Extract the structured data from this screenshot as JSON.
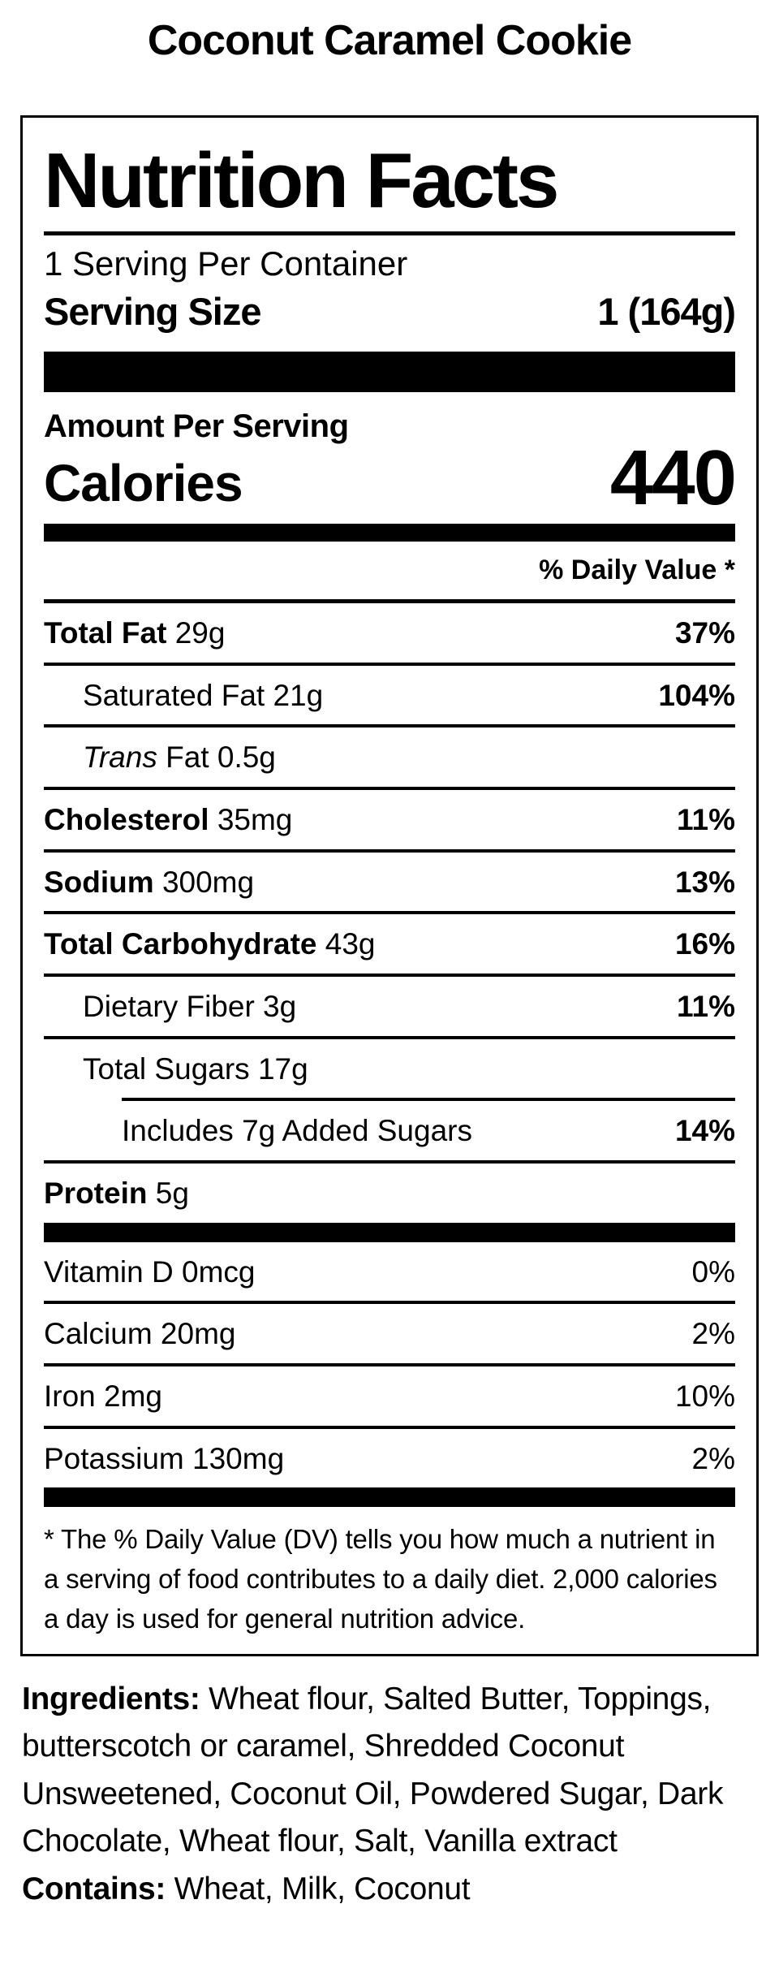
{
  "product": {
    "title": "Coconut Caramel Cookie"
  },
  "colors": {
    "text": "#000000",
    "background": "#ffffff"
  },
  "label": {
    "title": "Nutrition Facts",
    "servings_per_container": "1 Serving Per Container",
    "serving_size": {
      "label": "Serving Size",
      "value": "1 (164g)"
    },
    "amount_per_serving": "Amount Per Serving",
    "calories": {
      "label": "Calories",
      "value": "440"
    },
    "daily_value_header": "% Daily Value *",
    "nutrients": [
      {
        "bold": "Total Fat",
        "rest": " 29g",
        "dv": "37%",
        "indent": 0
      },
      {
        "rest": "Saturated Fat 21g",
        "dv": "104%",
        "indent": 1
      },
      {
        "italic": "Trans",
        "rest": " Fat 0.5g",
        "dv": "",
        "indent": 1
      },
      {
        "bold": "Cholesterol",
        "rest": " 35mg",
        "dv": "11%",
        "indent": 0
      },
      {
        "bold": "Sodium",
        "rest": " 300mg",
        "dv": "13%",
        "indent": 0
      },
      {
        "bold": "Total Carbohydrate",
        "rest": " 43g",
        "dv": "16%",
        "indent": 0
      },
      {
        "rest": "Dietary Fiber 3g",
        "dv": "11%",
        "indent": 1
      },
      {
        "rest": "Total Sugars 17g",
        "dv": "",
        "indent": 1
      },
      {
        "rest": "Includes 7g Added Sugars",
        "dv": "14%",
        "indent": 2,
        "rule_indent": true
      },
      {
        "bold": "Protein",
        "rest": " 5g",
        "dv": "",
        "indent": 0
      }
    ],
    "vitamins": [
      {
        "rest": "Vitamin D 0mcg",
        "dv": "0%",
        "indent": 0
      },
      {
        "rest": "Calcium 20mg",
        "dv": "2%",
        "indent": 0
      },
      {
        "rest": "Iron 2mg",
        "dv": "10%",
        "indent": 0
      },
      {
        "rest": "Potassium 130mg",
        "dv": "2%",
        "indent": 0
      }
    ],
    "footnote": "* The % Daily Value (DV) tells you how much a nutrient in a serving of food contributes to a daily diet. 2,000 calories a day is used for general nutrition advice."
  },
  "ingredients": {
    "label": "Ingredients:",
    "text": " Wheat flour, Salted Butter, Toppings, butterscotch or caramel, Shredded Coconut Unsweetened, Coconut Oil, Powdered Sugar, Dark Chocolate, Wheat flour, Salt, Vanilla extract"
  },
  "contains": {
    "label": "Contains:",
    "text": " Wheat, Milk, Coconut"
  }
}
